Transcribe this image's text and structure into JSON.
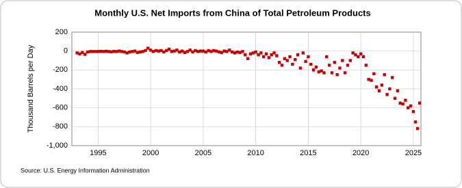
{
  "chart_data": {
    "type": "scatter",
    "title": "Monthly U.S. Net Imports from China of Total Petroleum Products",
    "y_label": "Thousand Barrels per Day",
    "source": "Source: U.S. Energy Information Administration",
    "color": "#cc0000",
    "grid": true,
    "xlim": [
      1992.5,
      2025.72
    ],
    "xticks": [
      1995,
      2000,
      2005,
      2010,
      2015,
      2020,
      2025
    ],
    "ylim": [
      -1000,
      200
    ],
    "yticks": [
      200,
      0,
      -200,
      -400,
      -600,
      -800,
      {
        "value": -1000,
        "label": "-1,000"
      }
    ],
    "x": [
      1993,
      1993.25,
      1993.5,
      1993.75,
      1994,
      1994.25,
      1994.5,
      1994.75,
      1995,
      1995.25,
      1995.5,
      1995.75,
      1996,
      1996.25,
      1996.5,
      1996.75,
      1997,
      1997.25,
      1997.5,
      1997.75,
      1998,
      1998.25,
      1998.5,
      1998.75,
      1999,
      1999.25,
      1999.5,
      1999.75,
      2000,
      2000.25,
      2000.5,
      2000.75,
      2001,
      2001.25,
      2001.5,
      2001.75,
      2002,
      2002.25,
      2002.5,
      2002.75,
      2003,
      2003.25,
      2003.5,
      2003.75,
      2004,
      2004.25,
      2004.5,
      2004.75,
      2005,
      2005.25,
      2005.5,
      2005.75,
      2006,
      2006.25,
      2006.5,
      2006.75,
      2007,
      2007.25,
      2007.5,
      2007.75,
      2008,
      2008.25,
      2008.5,
      2008.75,
      2009,
      2009.25,
      2009.5,
      2009.75,
      2010,
      2010.25,
      2010.5,
      2010.75,
      2011,
      2011.25,
      2011.5,
      2011.75,
      2012,
      2012.25,
      2012.5,
      2012.75,
      2013,
      2013.25,
      2013.5,
      2013.75,
      2014,
      2014.25,
      2014.5,
      2014.75,
      2015,
      2015.25,
      2015.5,
      2015.75,
      2016,
      2016.25,
      2016.5,
      2016.75,
      2017,
      2017.25,
      2017.5,
      2017.75,
      2018,
      2018.25,
      2018.5,
      2018.75,
      2019,
      2019.25,
      2019.5,
      2019.75,
      2020,
      2020.25,
      2020.5,
      2020.75,
      2021,
      2021.25,
      2021.5,
      2021.75,
      2022,
      2022.25,
      2022.5,
      2022.75,
      2023,
      2023.25,
      2023.5,
      2023.75,
      2024,
      2024.25,
      2024.5,
      2024.75,
      2025,
      2025.2,
      2025.4,
      2025.6
    ],
    "values": [
      -20,
      -30,
      -15,
      -35,
      -10,
      -5,
      -5,
      -5,
      -5,
      -3,
      -5,
      -2,
      -5,
      -8,
      -3,
      -5,
      0,
      -5,
      -10,
      -20,
      -10,
      -5,
      0,
      -15,
      -10,
      -5,
      5,
      30,
      10,
      -5,
      5,
      0,
      5,
      -10,
      5,
      20,
      -5,
      0,
      10,
      -10,
      0,
      -15,
      -5,
      10,
      -10,
      5,
      -5,
      0,
      0,
      -10,
      5,
      -5,
      5,
      0,
      -10,
      -15,
      0,
      -5,
      10,
      -10,
      -20,
      -10,
      -15,
      -5,
      -40,
      -80,
      -30,
      -20,
      -10,
      -40,
      -20,
      -60,
      -30,
      -70,
      -40,
      -20,
      -50,
      -120,
      -150,
      -80,
      -100,
      -60,
      -140,
      -90,
      -40,
      -180,
      -20,
      -110,
      -60,
      -140,
      -200,
      -170,
      -220,
      -210,
      -230,
      -60,
      -150,
      -230,
      -120,
      -250,
      -180,
      -100,
      -230,
      -150,
      -100,
      -20,
      -40,
      -60,
      -30,
      -60,
      -150,
      -300,
      -310,
      -240,
      -380,
      -420,
      -360,
      -250,
      -460,
      -400,
      -280,
      -500,
      -420,
      -550,
      -560,
      -520,
      -600,
      -580,
      -640,
      -750,
      -820,
      -550
    ]
  }
}
